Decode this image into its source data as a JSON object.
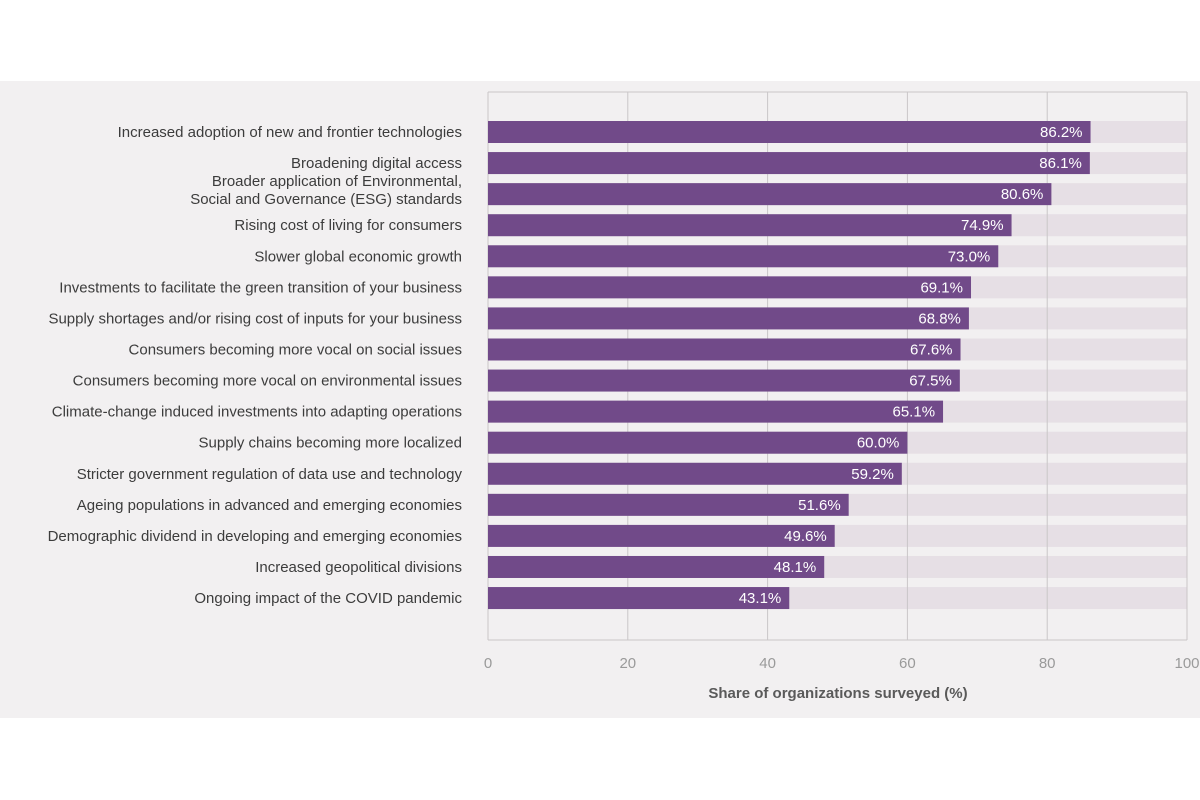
{
  "chart_data": {
    "type": "bar",
    "orientation": "horizontal",
    "categories": [
      "Increased adoption of new and frontier technologies",
      "Broadening digital access",
      "Broader application of Environmental,\nSocial and Governance (ESG) standards",
      "Rising cost of living for consumers",
      "Slower global economic growth",
      "Investments to facilitate the green transition of your business",
      "Supply shortages and/or rising cost of inputs for your business",
      "Consumers becoming more vocal on social issues",
      "Consumers becoming more vocal on environmental issues",
      "Climate-change induced investments into adapting operations",
      "Supply chains becoming more localized",
      "Stricter government regulation of data use and technology",
      "Ageing populations in advanced and emerging economies",
      "Demographic dividend in developing and emerging economies",
      "Increased geopolitical divisions",
      "Ongoing impact of the COVID pandemic"
    ],
    "values": [
      86.2,
      86.1,
      80.6,
      74.9,
      73.0,
      69.1,
      68.8,
      67.6,
      67.5,
      65.1,
      60.0,
      59.2,
      51.6,
      49.6,
      48.1,
      43.1
    ],
    "value_labels": [
      "86.2%",
      "86.1%",
      "80.6%",
      "74.9%",
      "73.0%",
      "69.1%",
      "68.8%",
      "67.6%",
      "67.5%",
      "65.1%",
      "60.0%",
      "59.2%",
      "51.6%",
      "49.6%",
      "48.1%",
      "43.1%"
    ],
    "xlim": [
      0,
      100
    ],
    "xticks": [
      0,
      20,
      40,
      60,
      80,
      100
    ],
    "xtick_labels": [
      "0",
      "20",
      "40",
      "60",
      "80",
      "100"
    ],
    "xlabel": "Share of organizations surveyed (%)",
    "ylabel": "",
    "title": "",
    "grid": true,
    "colors": {
      "bar": "#714a89",
      "track": "#e6dfe5",
      "background": "#f2f0f1",
      "grid": "#c9c6c8"
    }
  }
}
